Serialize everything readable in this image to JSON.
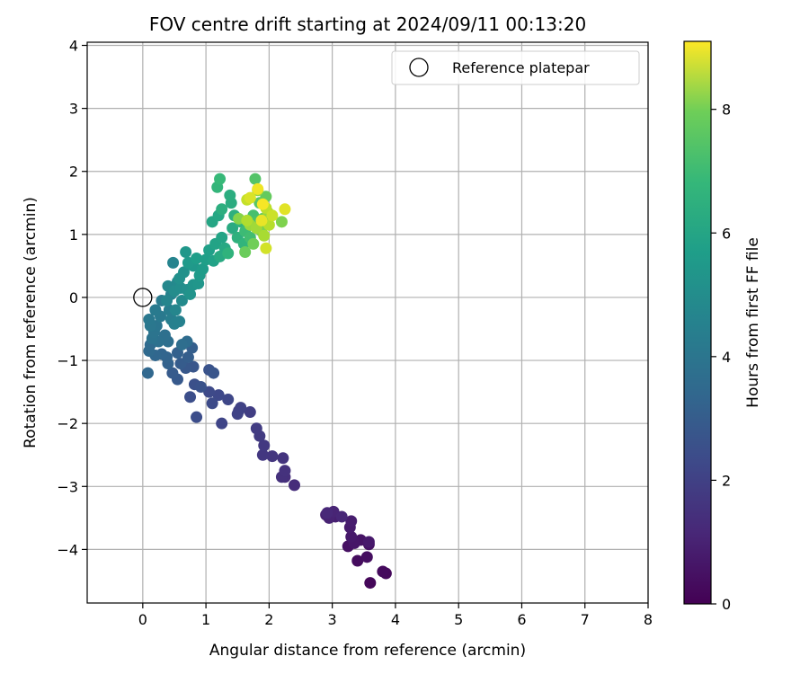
{
  "chart_data": {
    "type": "scatter",
    "title": "FOV centre drift starting at 2024/09/11 00:13:20",
    "xlabel": "Angular distance from reference (arcmin)",
    "ylabel": "Rotation from reference (arcmin)",
    "xlim": [
      -0.88,
      8.0
    ],
    "ylim": [
      -4.85,
      4.05
    ],
    "xticks": [
      "0",
      "1",
      "2",
      "3",
      "4",
      "5",
      "6",
      "7",
      "8"
    ],
    "yticks": [
      "−4",
      "−3",
      "−2",
      "−1",
      "0",
      "1",
      "2",
      "3",
      "4"
    ],
    "grid": true,
    "legend": {
      "position": "top-right",
      "entries": [
        "Reference platepar"
      ]
    },
    "reference_point": {
      "x": 0,
      "y": 0
    },
    "colorbar": {
      "label": "Hours from first FF file",
      "range": [
        0,
        9.1
      ],
      "ticks": [
        "0",
        "2",
        "4",
        "6",
        "8"
      ],
      "colormap": "viridis"
    },
    "series": [
      {
        "points": [
          {
            "x": 3.6,
            "y": -4.53,
            "h": 0.15
          },
          {
            "x": 3.85,
            "y": -4.38,
            "h": 0.2
          },
          {
            "x": 3.8,
            "y": -4.35,
            "h": 0.25
          },
          {
            "x": 3.4,
            "y": -4.18,
            "h": 0.3
          },
          {
            "x": 3.55,
            "y": -4.12,
            "h": 0.35
          },
          {
            "x": 3.25,
            "y": -3.95,
            "h": 0.4
          },
          {
            "x": 3.58,
            "y": -3.92,
            "h": 0.45
          },
          {
            "x": 3.45,
            "y": -3.85,
            "h": 0.5
          },
          {
            "x": 3.35,
            "y": -3.9,
            "h": 0.55
          },
          {
            "x": 3.3,
            "y": -3.8,
            "h": 0.6
          },
          {
            "x": 3.58,
            "y": -3.88,
            "h": 0.65
          },
          {
            "x": 3.28,
            "y": -3.65,
            "h": 0.7
          },
          {
            "x": 3.3,
            "y": -3.55,
            "h": 0.75
          },
          {
            "x": 3.05,
            "y": -3.48,
            "h": 0.8
          },
          {
            "x": 2.9,
            "y": -3.45,
            "h": 0.85
          },
          {
            "x": 2.95,
            "y": -3.5,
            "h": 0.9
          },
          {
            "x": 3.02,
            "y": -3.4,
            "h": 0.95
          },
          {
            "x": 3.15,
            "y": -3.48,
            "h": 1.0
          },
          {
            "x": 2.92,
            "y": -3.42,
            "h": 1.05
          },
          {
            "x": 2.4,
            "y": -2.98,
            "h": 1.2
          },
          {
            "x": 2.25,
            "y": -2.85,
            "h": 1.25
          },
          {
            "x": 2.2,
            "y": -2.85,
            "h": 1.3
          },
          {
            "x": 2.25,
            "y": -2.75,
            "h": 1.35
          },
          {
            "x": 2.22,
            "y": -2.55,
            "h": 1.4
          },
          {
            "x": 2.05,
            "y": -2.52,
            "h": 1.45
          },
          {
            "x": 1.9,
            "y": -2.5,
            "h": 1.5
          },
          {
            "x": 1.92,
            "y": -2.35,
            "h": 1.55
          },
          {
            "x": 1.85,
            "y": -2.2,
            "h": 1.6
          },
          {
            "x": 1.8,
            "y": -2.08,
            "h": 1.65
          },
          {
            "x": 1.7,
            "y": -1.82,
            "h": 1.7
          },
          {
            "x": 1.52,
            "y": -1.8,
            "h": 1.75
          },
          {
            "x": 1.55,
            "y": -1.75,
            "h": 1.8
          },
          {
            "x": 1.5,
            "y": -1.85,
            "h": 1.85
          },
          {
            "x": 1.25,
            "y": -2.0,
            "h": 1.9
          },
          {
            "x": 1.35,
            "y": -1.62,
            "h": 1.95
          },
          {
            "x": 1.2,
            "y": -1.55,
            "h": 2.0
          },
          {
            "x": 1.05,
            "y": -1.5,
            "h": 2.05
          },
          {
            "x": 1.1,
            "y": -1.68,
            "h": 2.1
          },
          {
            "x": 0.85,
            "y": -1.9,
            "h": 2.15
          },
          {
            "x": 0.75,
            "y": -1.58,
            "h": 2.2
          },
          {
            "x": 0.82,
            "y": -1.38,
            "h": 2.25
          },
          {
            "x": 0.92,
            "y": -1.42,
            "h": 2.3
          },
          {
            "x": 1.05,
            "y": -1.15,
            "h": 2.35
          },
          {
            "x": 1.12,
            "y": -1.2,
            "h": 2.4
          },
          {
            "x": 0.8,
            "y": -1.1,
            "h": 2.45
          },
          {
            "x": 0.68,
            "y": -1.12,
            "h": 2.5
          },
          {
            "x": 0.55,
            "y": -1.3,
            "h": 2.55
          },
          {
            "x": 0.47,
            "y": -1.2,
            "h": 2.6
          },
          {
            "x": 0.6,
            "y": -1.05,
            "h": 2.65
          },
          {
            "x": 0.72,
            "y": -0.95,
            "h": 2.7
          },
          {
            "x": 0.78,
            "y": -0.8,
            "h": 2.75
          },
          {
            "x": 0.55,
            "y": -0.88,
            "h": 2.8
          },
          {
            "x": 0.4,
            "y": -1.05,
            "h": 2.85
          },
          {
            "x": 0.38,
            "y": -0.95,
            "h": 2.9
          },
          {
            "x": 0.3,
            "y": -0.9,
            "h": 2.95
          },
          {
            "x": 0.2,
            "y": -0.92,
            "h": 3.0
          },
          {
            "x": 0.08,
            "y": -1.2,
            "h": 3.05
          },
          {
            "x": 0.1,
            "y": -0.85,
            "h": 3.1
          },
          {
            "x": 0.12,
            "y": -0.75,
            "h": 3.15
          },
          {
            "x": 0.7,
            "y": -0.7,
            "h": 3.2
          },
          {
            "x": 0.62,
            "y": -0.75,
            "h": 3.25
          },
          {
            "x": 0.4,
            "y": -0.7,
            "h": 3.3
          },
          {
            "x": 0.35,
            "y": -0.6,
            "h": 3.35
          },
          {
            "x": 0.25,
            "y": -0.7,
            "h": 3.4
          },
          {
            "x": 0.15,
            "y": -0.65,
            "h": 3.45
          },
          {
            "x": 0.18,
            "y": -0.55,
            "h": 3.5
          },
          {
            "x": 0.22,
            "y": -0.45,
            "h": 3.55
          },
          {
            "x": 0.12,
            "y": -0.45,
            "h": 3.6
          },
          {
            "x": 0.1,
            "y": -0.35,
            "h": 3.65
          },
          {
            "x": 0.28,
            "y": -0.3,
            "h": 3.7
          },
          {
            "x": 0.2,
            "y": -0.2,
            "h": 3.75
          },
          {
            "x": 0.3,
            "y": -0.05,
            "h": 3.8
          },
          {
            "x": 0.42,
            "y": -0.2,
            "h": 3.85
          },
          {
            "x": 0.45,
            "y": -0.35,
            "h": 3.9
          },
          {
            "x": 0.5,
            "y": -0.42,
            "h": 3.95
          },
          {
            "x": 0.58,
            "y": -0.38,
            "h": 4.0
          },
          {
            "x": 0.45,
            "y": 0.05,
            "h": 4.05
          },
          {
            "x": 0.48,
            "y": 0.55,
            "h": 4.1
          },
          {
            "x": 0.38,
            "y": -0.05,
            "h": 4.15
          },
          {
            "x": 0.52,
            "y": -0.2,
            "h": 4.2
          },
          {
            "x": 0.4,
            "y": 0.18,
            "h": 4.25
          },
          {
            "x": 0.55,
            "y": 0.25,
            "h": 4.3
          },
          {
            "x": 0.62,
            "y": -0.05,
            "h": 4.35
          },
          {
            "x": 0.5,
            "y": 0.1,
            "h": 4.4
          },
          {
            "x": 0.6,
            "y": 0.15,
            "h": 4.45
          },
          {
            "x": 0.7,
            "y": 0.12,
            "h": 4.5
          },
          {
            "x": 0.58,
            "y": 0.3,
            "h": 4.55
          },
          {
            "x": 0.65,
            "y": 0.4,
            "h": 4.6
          },
          {
            "x": 0.75,
            "y": 0.05,
            "h": 4.65
          },
          {
            "x": 0.8,
            "y": 0.2,
            "h": 4.7
          },
          {
            "x": 0.88,
            "y": 0.22,
            "h": 4.75
          },
          {
            "x": 0.68,
            "y": 0.72,
            "h": 4.8
          },
          {
            "x": 0.8,
            "y": 0.5,
            "h": 4.85
          },
          {
            "x": 0.72,
            "y": 0.55,
            "h": 4.9
          },
          {
            "x": 0.9,
            "y": 0.35,
            "h": 4.95
          },
          {
            "x": 0.95,
            "y": 0.45,
            "h": 5.0
          },
          {
            "x": 0.85,
            "y": 0.62,
            "h": 5.05
          },
          {
            "x": 1.0,
            "y": 0.6,
            "h": 5.1
          },
          {
            "x": 1.05,
            "y": 0.75,
            "h": 5.15
          },
          {
            "x": 1.12,
            "y": 0.58,
            "h": 5.2
          },
          {
            "x": 1.15,
            "y": 0.85,
            "h": 5.25
          },
          {
            "x": 1.25,
            "y": 0.95,
            "h": 5.3
          },
          {
            "x": 1.1,
            "y": 1.2,
            "h": 5.35
          },
          {
            "x": 1.2,
            "y": 1.3,
            "h": 5.4
          },
          {
            "x": 1.3,
            "y": 0.78,
            "h": 5.45
          },
          {
            "x": 1.22,
            "y": 0.65,
            "h": 5.5
          },
          {
            "x": 1.42,
            "y": 1.1,
            "h": 5.55
          },
          {
            "x": 1.4,
            "y": 1.5,
            "h": 5.6
          },
          {
            "x": 1.38,
            "y": 1.62,
            "h": 5.65
          },
          {
            "x": 1.25,
            "y": 1.4,
            "h": 5.7
          },
          {
            "x": 1.45,
            "y": 1.3,
            "h": 5.75
          },
          {
            "x": 1.5,
            "y": 0.95,
            "h": 5.8
          },
          {
            "x": 1.35,
            "y": 0.7,
            "h": 5.85
          },
          {
            "x": 1.55,
            "y": 1.2,
            "h": 5.9
          },
          {
            "x": 1.6,
            "y": 0.85,
            "h": 5.95
          },
          {
            "x": 1.18,
            "y": 1.75,
            "h": 6.0
          },
          {
            "x": 1.22,
            "y": 1.88,
            "h": 6.1
          },
          {
            "x": 1.62,
            "y": 1.05,
            "h": 6.2
          },
          {
            "x": 1.7,
            "y": 0.95,
            "h": 6.3
          },
          {
            "x": 1.75,
            "y": 1.3,
            "h": 6.4
          },
          {
            "x": 1.8,
            "y": 1.2,
            "h": 6.5
          },
          {
            "x": 1.78,
            "y": 1.88,
            "h": 6.6
          },
          {
            "x": 1.85,
            "y": 1.5,
            "h": 6.7
          },
          {
            "x": 1.9,
            "y": 1.25,
            "h": 6.8
          },
          {
            "x": 1.95,
            "y": 1.6,
            "h": 6.9
          },
          {
            "x": 1.62,
            "y": 0.72,
            "h": 7.0
          },
          {
            "x": 1.75,
            "y": 0.85,
            "h": 7.1
          },
          {
            "x": 1.88,
            "y": 1.05,
            "h": 7.2
          },
          {
            "x": 2.2,
            "y": 1.2,
            "h": 7.3
          },
          {
            "x": 1.52,
            "y": 1.25,
            "h": 7.4
          },
          {
            "x": 1.82,
            "y": 1.7,
            "h": 7.5
          },
          {
            "x": 1.98,
            "y": 1.35,
            "h": 7.6
          },
          {
            "x": 1.7,
            "y": 1.15,
            "h": 7.7
          },
          {
            "x": 1.8,
            "y": 1.1,
            "h": 7.8
          },
          {
            "x": 1.92,
            "y": 0.98,
            "h": 7.9
          },
          {
            "x": 1.65,
            "y": 1.22,
            "h": 8.0
          },
          {
            "x": 2.0,
            "y": 1.15,
            "h": 8.1
          },
          {
            "x": 1.95,
            "y": 1.42,
            "h": 8.2
          },
          {
            "x": 1.65,
            "y": 1.55,
            "h": 8.3
          },
          {
            "x": 2.05,
            "y": 1.3,
            "h": 8.4
          },
          {
            "x": 1.95,
            "y": 0.78,
            "h": 8.5
          },
          {
            "x": 1.7,
            "y": 1.58,
            "h": 8.6
          },
          {
            "x": 2.25,
            "y": 1.4,
            "h": 8.7
          },
          {
            "x": 1.88,
            "y": 1.22,
            "h": 8.8
          },
          {
            "x": 1.82,
            "y": 1.72,
            "h": 8.9
          },
          {
            "x": 1.9,
            "y": 1.48,
            "h": 9.0
          }
        ]
      }
    ]
  }
}
